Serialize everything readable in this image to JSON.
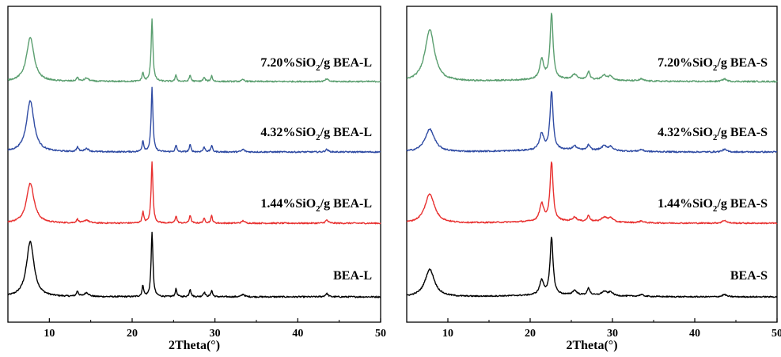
{
  "chart_data": [
    {
      "type": "line",
      "panel": "left",
      "xlabel": "2Theta(°)",
      "xlim": [
        5,
        50
      ],
      "x_ticks": [
        "10",
        "20",
        "30",
        "40",
        "50"
      ],
      "stacked": true,
      "series": [
        {
          "name": "BEA-L",
          "label_main": "BEA-L",
          "color": "#000000",
          "baseline": 1,
          "peaks": [
            {
              "x": 7.7,
              "h": 0.85,
              "w": 0.55
            },
            {
              "x": 13.4,
              "h": 0.08,
              "w": 0.15
            },
            {
              "x": 14.5,
              "h": 0.06,
              "w": 0.3
            },
            {
              "x": 21.3,
              "h": 0.17,
              "w": 0.12
            },
            {
              "x": 22.4,
              "h": 1.0,
              "w": 0.13
            },
            {
              "x": 25.3,
              "h": 0.12,
              "w": 0.12
            },
            {
              "x": 27.0,
              "h": 0.12,
              "w": 0.12
            },
            {
              "x": 28.7,
              "h": 0.07,
              "w": 0.15
            },
            {
              "x": 29.6,
              "h": 0.1,
              "w": 0.12
            },
            {
              "x": 33.4,
              "h": 0.04,
              "w": 0.2
            },
            {
              "x": 43.5,
              "h": 0.05,
              "w": 0.2
            }
          ]
        },
        {
          "name": "1.44%SiO2/g BEA-L",
          "label_main": "1.44%SiO",
          "label_sub": "2",
          "label_end": "/g BEA-L",
          "color": "#e8302f",
          "baseline": 2,
          "peaks": [
            {
              "x": 7.7,
              "h": 0.65,
              "w": 0.55
            },
            {
              "x": 13.4,
              "h": 0.06,
              "w": 0.15
            },
            {
              "x": 14.5,
              "h": 0.05,
              "w": 0.3
            },
            {
              "x": 21.3,
              "h": 0.18,
              "w": 0.12
            },
            {
              "x": 22.4,
              "h": 1.0,
              "w": 0.13
            },
            {
              "x": 25.3,
              "h": 0.12,
              "w": 0.12
            },
            {
              "x": 27.0,
              "h": 0.13,
              "w": 0.12
            },
            {
              "x": 28.7,
              "h": 0.07,
              "w": 0.15
            },
            {
              "x": 29.6,
              "h": 0.12,
              "w": 0.12
            },
            {
              "x": 33.4,
              "h": 0.04,
              "w": 0.2
            },
            {
              "x": 43.5,
              "h": 0.05,
              "w": 0.2
            }
          ]
        },
        {
          "name": "4.32%SiO2/g BEA-L",
          "label_main": "4.32%SiO",
          "label_sub": "2",
          "label_end": "/g BEA-L",
          "color": "#2f4ba3",
          "baseline": 3,
          "peaks": [
            {
              "x": 7.7,
              "h": 0.8,
              "w": 0.55
            },
            {
              "x": 13.4,
              "h": 0.07,
              "w": 0.15
            },
            {
              "x": 14.5,
              "h": 0.05,
              "w": 0.3
            },
            {
              "x": 21.3,
              "h": 0.17,
              "w": 0.12
            },
            {
              "x": 22.4,
              "h": 1.0,
              "w": 0.13
            },
            {
              "x": 25.3,
              "h": 0.1,
              "w": 0.12
            },
            {
              "x": 27.0,
              "h": 0.11,
              "w": 0.12
            },
            {
              "x": 28.7,
              "h": 0.07,
              "w": 0.15
            },
            {
              "x": 29.6,
              "h": 0.1,
              "w": 0.12
            },
            {
              "x": 33.4,
              "h": 0.04,
              "w": 0.2
            },
            {
              "x": 43.5,
              "h": 0.04,
              "w": 0.2
            }
          ]
        },
        {
          "name": "7.20%SiO2/g BEA-L",
          "label_main": "7.20%SiO",
          "label_sub": "2",
          "label_end": "/g BEA-L",
          "color": "#5a9e6f",
          "baseline": 4,
          "peaks": [
            {
              "x": 7.7,
              "h": 0.7,
              "w": 0.55
            },
            {
              "x": 13.4,
              "h": 0.06,
              "w": 0.15
            },
            {
              "x": 14.5,
              "h": 0.05,
              "w": 0.3
            },
            {
              "x": 21.3,
              "h": 0.14,
              "w": 0.12
            },
            {
              "x": 22.4,
              "h": 1.0,
              "w": 0.13
            },
            {
              "x": 25.3,
              "h": 0.1,
              "w": 0.12
            },
            {
              "x": 27.0,
              "h": 0.1,
              "w": 0.12
            },
            {
              "x": 28.7,
              "h": 0.06,
              "w": 0.15
            },
            {
              "x": 29.6,
              "h": 0.09,
              "w": 0.12
            },
            {
              "x": 33.4,
              "h": 0.03,
              "w": 0.2
            },
            {
              "x": 43.5,
              "h": 0.04,
              "w": 0.2
            }
          ]
        }
      ]
    },
    {
      "type": "line",
      "panel": "right",
      "xlabel": "2Theta(°)",
      "xlim": [
        5,
        50
      ],
      "x_ticks": [
        "10",
        "20",
        "30",
        "40",
        "50"
      ],
      "stacked": true,
      "series": [
        {
          "name": "BEA-S",
          "label_main": "BEA-S",
          "color": "#000000",
          "baseline": 1,
          "peaks": [
            {
              "x": 7.8,
              "h": 0.48,
              "w": 0.7
            },
            {
              "x": 21.4,
              "h": 0.25,
              "w": 0.3
            },
            {
              "x": 22.6,
              "h": 1.0,
              "w": 0.22
            },
            {
              "x": 25.4,
              "h": 0.08,
              "w": 0.3
            },
            {
              "x": 27.1,
              "h": 0.12,
              "w": 0.2
            },
            {
              "x": 29.0,
              "h": 0.07,
              "w": 0.4
            },
            {
              "x": 29.8,
              "h": 0.06,
              "w": 0.3
            },
            {
              "x": 33.5,
              "h": 0.03,
              "w": 0.3
            },
            {
              "x": 43.6,
              "h": 0.04,
              "w": 0.3
            }
          ]
        },
        {
          "name": "1.44%SiO2/g BEA-S",
          "label_main": "1.44%SiO",
          "label_sub": "2",
          "label_end": "/g BEA-S",
          "color": "#e8302f",
          "baseline": 2,
          "peaks": [
            {
              "x": 7.8,
              "h": 0.5,
              "w": 0.7
            },
            {
              "x": 21.4,
              "h": 0.3,
              "w": 0.3
            },
            {
              "x": 22.6,
              "h": 1.0,
              "w": 0.22
            },
            {
              "x": 25.4,
              "h": 0.07,
              "w": 0.3
            },
            {
              "x": 27.1,
              "h": 0.1,
              "w": 0.2
            },
            {
              "x": 29.0,
              "h": 0.08,
              "w": 0.4
            },
            {
              "x": 29.8,
              "h": 0.07,
              "w": 0.3
            },
            {
              "x": 33.5,
              "h": 0.03,
              "w": 0.3
            },
            {
              "x": 43.6,
              "h": 0.05,
              "w": 0.3
            }
          ]
        },
        {
          "name": "4.32%SiO2/g BEA-S",
          "label_main": "4.32%SiO",
          "label_sub": "2",
          "label_end": "/g BEA-S",
          "color": "#2f4ba3",
          "baseline": 3,
          "peaks": [
            {
              "x": 7.8,
              "h": 0.35,
              "w": 0.7
            },
            {
              "x": 21.4,
              "h": 0.25,
              "w": 0.3
            },
            {
              "x": 22.6,
              "h": 0.9,
              "w": 0.22
            },
            {
              "x": 25.4,
              "h": 0.06,
              "w": 0.3
            },
            {
              "x": 27.1,
              "h": 0.08,
              "w": 0.2
            },
            {
              "x": 29.0,
              "h": 0.07,
              "w": 0.4
            },
            {
              "x": 29.8,
              "h": 0.06,
              "w": 0.3
            },
            {
              "x": 33.5,
              "h": 0.03,
              "w": 0.3
            },
            {
              "x": 43.6,
              "h": 0.04,
              "w": 0.3
            }
          ]
        },
        {
          "name": "7.20%SiO2/g BEA-S",
          "label_main": "7.20%SiO",
          "label_sub": "2",
          "label_end": "/g BEA-S",
          "color": "#5a9e6f",
          "baseline": 4,
          "peaks": [
            {
              "x": 7.8,
              "h": 0.8,
              "w": 0.7
            },
            {
              "x": 21.4,
              "h": 0.3,
              "w": 0.3
            },
            {
              "x": 22.6,
              "h": 1.0,
              "w": 0.22
            },
            {
              "x": 25.4,
              "h": 0.08,
              "w": 0.3
            },
            {
              "x": 27.1,
              "h": 0.12,
              "w": 0.2
            },
            {
              "x": 29.0,
              "h": 0.07,
              "w": 0.4
            },
            {
              "x": 29.8,
              "h": 0.06,
              "w": 0.3
            },
            {
              "x": 33.5,
              "h": 0.03,
              "w": 0.3
            },
            {
              "x": 43.6,
              "h": 0.04,
              "w": 0.3
            }
          ]
        }
      ]
    }
  ]
}
